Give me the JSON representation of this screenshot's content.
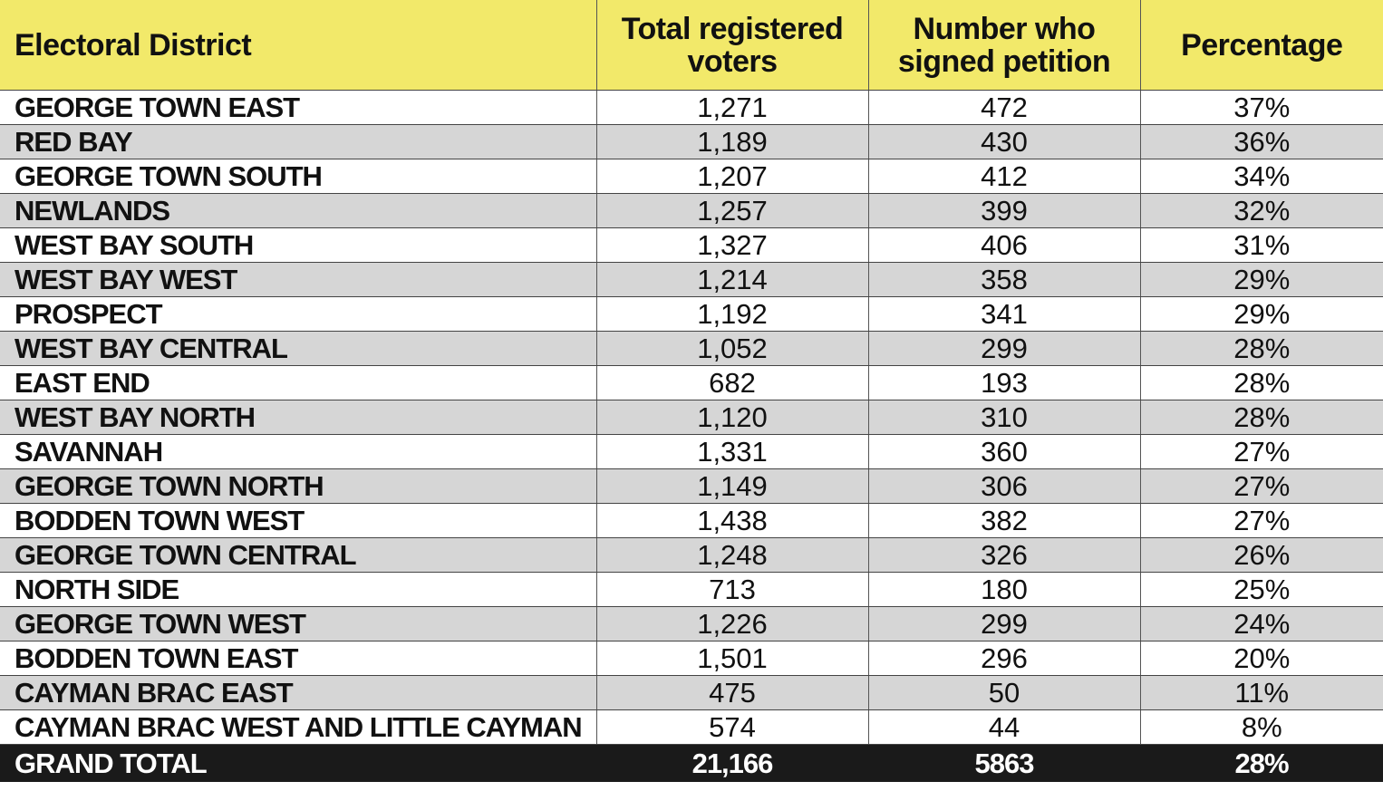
{
  "headers": {
    "district": "Electoral District",
    "registered_line1": "Total registered",
    "registered_line2": "voters",
    "signed_line1": "Number who",
    "signed_line2": "signed petition",
    "percentage": "Percentage"
  },
  "rows": [
    {
      "district": "GEORGE TOWN EAST",
      "registered": "1,271",
      "signed": "472",
      "percentage": "37%"
    },
    {
      "district": "RED BAY",
      "registered": "1,189",
      "signed": "430",
      "percentage": "36%"
    },
    {
      "district": "GEORGE TOWN SOUTH",
      "registered": "1,207",
      "signed": "412",
      "percentage": "34%"
    },
    {
      "district": "NEWLANDS",
      "registered": "1,257",
      "signed": "399",
      "percentage": "32%"
    },
    {
      "district": "WEST BAY SOUTH",
      "registered": "1,327",
      "signed": "406",
      "percentage": "31%"
    },
    {
      "district": "WEST BAY WEST",
      "registered": "1,214",
      "signed": "358",
      "percentage": "29%"
    },
    {
      "district": "PROSPECT",
      "registered": "1,192",
      "signed": "341",
      "percentage": "29%"
    },
    {
      "district": "WEST BAY CENTRAL",
      "registered": "1,052",
      "signed": "299",
      "percentage": "28%"
    },
    {
      "district": "EAST END",
      "registered": "682",
      "signed": "193",
      "percentage": "28%"
    },
    {
      "district": "WEST BAY NORTH",
      "registered": "1,120",
      "signed": "310",
      "percentage": "28%"
    },
    {
      "district": "SAVANNAH",
      "registered": "1,331",
      "signed": "360",
      "percentage": "27%"
    },
    {
      "district": "GEORGE TOWN NORTH",
      "registered": "1,149",
      "signed": "306",
      "percentage": "27%"
    },
    {
      "district": "BODDEN TOWN WEST",
      "registered": "1,438",
      "signed": "382",
      "percentage": "27%"
    },
    {
      "district": "GEORGE TOWN CENTRAL",
      "registered": "1,248",
      "signed": "326",
      "percentage": "26%"
    },
    {
      "district": "NORTH SIDE",
      "registered": "713",
      "signed": "180",
      "percentage": "25%"
    },
    {
      "district": "GEORGE TOWN WEST",
      "registered": "1,226",
      "signed": "299",
      "percentage": "24%"
    },
    {
      "district": "BODDEN TOWN EAST",
      "registered": "1,501",
      "signed": "296",
      "percentage": "20%"
    },
    {
      "district": "CAYMAN BRAC EAST",
      "registered": "475",
      "signed": "50",
      "percentage": "11%"
    },
    {
      "district": "CAYMAN BRAC WEST AND LITTLE CAYMAN",
      "registered": "574",
      "signed": "44",
      "percentage": "8%"
    }
  ],
  "total": {
    "label": "GRAND TOTAL",
    "registered": "21,166",
    "signed": "5863",
    "percentage": "28%"
  },
  "colors": {
    "header_bg": "#f2e96a",
    "shaded_row": "#d6d6d6",
    "total_bg": "#1a1a1a"
  }
}
